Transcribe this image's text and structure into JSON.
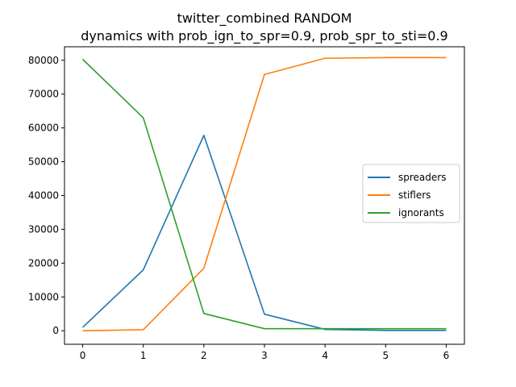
{
  "chart_data": {
    "type": "line",
    "title": "twitter_combined RANDOM",
    "subtitle": "dynamics with prob_ign_to_spr=0.9, prob_spr_to_sti=0.9",
    "xlabel": "",
    "ylabel": "",
    "x": [
      0,
      1,
      2,
      3,
      4,
      5,
      6
    ],
    "xlim": [
      -0.3,
      6.3
    ],
    "ylim": [
      -4000,
      84000
    ],
    "xticks": [
      "0",
      "1",
      "2",
      "3",
      "4",
      "5",
      "6"
    ],
    "yticks": [
      0,
      10000,
      20000,
      30000,
      40000,
      50000,
      60000,
      70000,
      80000
    ],
    "ytick_labels": [
      "0",
      "10000",
      "20000",
      "30000",
      "40000",
      "50000",
      "60000",
      "70000",
      "80000"
    ],
    "grid": false,
    "legend_position": "center-right",
    "series": [
      {
        "name": "spreaders",
        "color": "#1f77b4",
        "values": [
          1000,
          18000,
          57800,
          4900,
          400,
          100,
          100
        ]
      },
      {
        "name": "stiflers",
        "color": "#ff7f0e",
        "values": [
          0,
          300,
          18500,
          75800,
          80600,
          80800,
          80800
        ]
      },
      {
        "name": "ignorants",
        "color": "#2ca02c",
        "values": [
          80300,
          63000,
          5100,
          600,
          600,
          600,
          600
        ]
      }
    ]
  }
}
